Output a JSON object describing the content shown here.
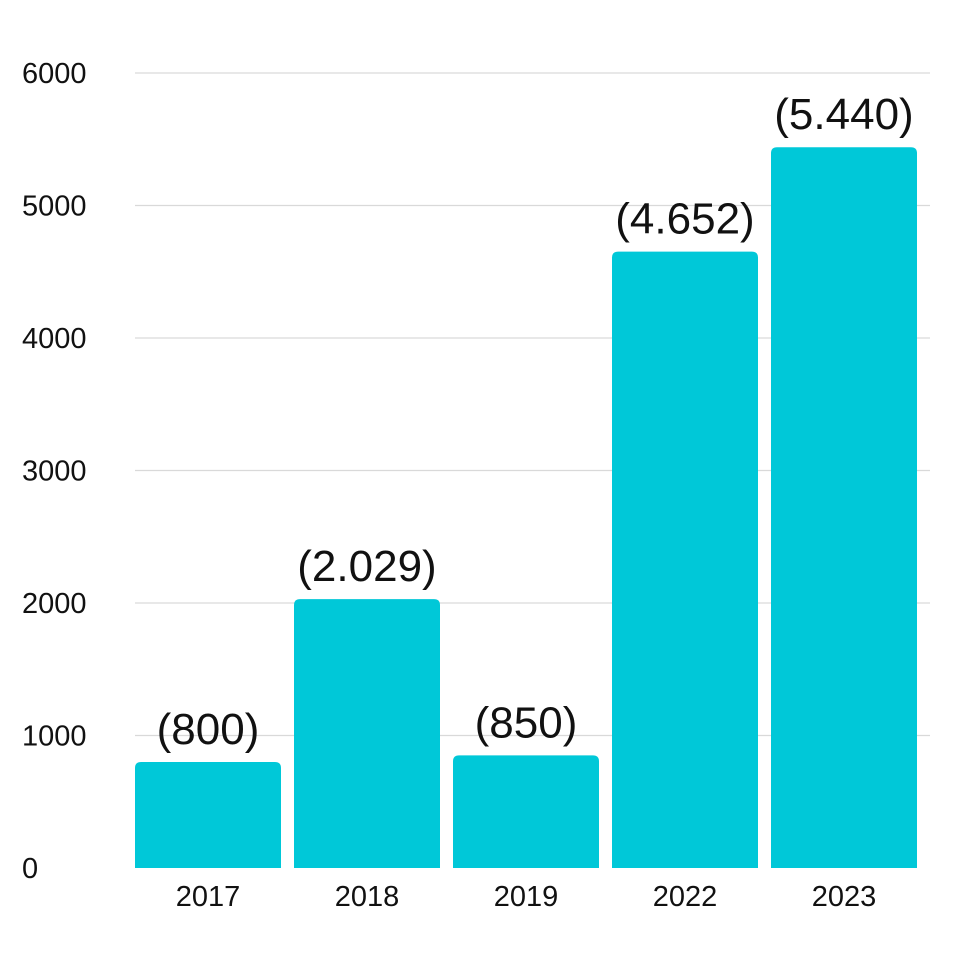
{
  "chart_data": {
    "type": "bar",
    "categories": [
      "2017",
      "2018",
      "2019",
      "2022",
      "2023"
    ],
    "values": [
      800,
      2029,
      850,
      4652,
      5440
    ],
    "data_labels": [
      "(800)",
      "(2.029)",
      "(850)",
      "(4.652)",
      "(5.440)"
    ],
    "title": "",
    "xlabel": "",
    "ylabel": "",
    "ylim": [
      0,
      6000
    ],
    "yticks": [
      0,
      1000,
      2000,
      3000,
      4000,
      5000,
      6000
    ],
    "ytick_labels": [
      "0",
      "1000",
      "2000",
      "3000",
      "4000",
      "5000",
      "6000"
    ],
    "grid": true,
    "legend": "none",
    "bar_color": "#00C8D8"
  }
}
